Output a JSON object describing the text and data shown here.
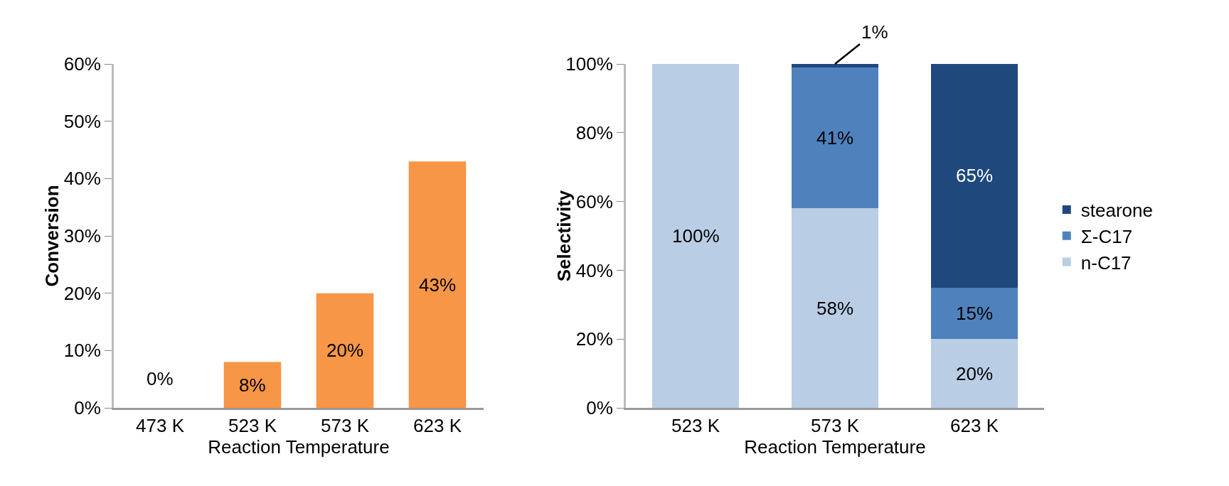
{
  "chart_data": [
    {
      "type": "bar",
      "categories": [
        "473 K",
        "523 K",
        "573 K",
        "623 K"
      ],
      "values": [
        0,
        8,
        20,
        43
      ],
      "color": "#f79646",
      "value_labels": [
        "0%",
        "8%",
        "20%",
        "43%"
      ],
      "xlabel": "Reaction Temperature",
      "ylabel": "Conversion",
      "ylim": [
        0,
        60
      ],
      "yticks": [
        {
          "value": 0,
          "label": "0%"
        },
        {
          "value": 10,
          "label": "10%"
        },
        {
          "value": 20,
          "label": "20%"
        },
        {
          "value": 30,
          "label": "30%"
        },
        {
          "value": 40,
          "label": "40%"
        },
        {
          "value": 50,
          "label": "50%"
        },
        {
          "value": 60,
          "label": "60%"
        }
      ],
      "grid": false,
      "legend": false
    },
    {
      "type": "bar",
      "stacked": true,
      "categories": [
        "523 K",
        "573 K",
        "623 K"
      ],
      "series": [
        {
          "name": "n-C17",
          "color": "#b9cde5",
          "values": [
            100,
            58,
            20
          ],
          "value_labels": [
            "100%",
            "58%",
            "20%"
          ]
        },
        {
          "name": "Σ-C17",
          "color": "#4f81bd",
          "values": [
            0,
            41,
            15
          ],
          "value_labels": [
            null,
            "41%",
            "15%"
          ]
        },
        {
          "name": "stearone",
          "color": "#1f497d",
          "values": [
            0,
            1,
            65
          ],
          "value_labels": [
            null,
            "1%",
            "65%"
          ]
        }
      ],
      "xlabel": "Reaction Temperature",
      "ylabel": "Selectivity",
      "ylim": [
        0,
        100
      ],
      "yticks": [
        {
          "value": 0,
          "label": "0%"
        },
        {
          "value": 20,
          "label": "20%"
        },
        {
          "value": 40,
          "label": "40%"
        },
        {
          "value": 60,
          "label": "60%"
        },
        {
          "value": 80,
          "label": "80%"
        },
        {
          "value": 100,
          "label": "100%"
        }
      ],
      "grid": false,
      "legend": "right"
    }
  ]
}
